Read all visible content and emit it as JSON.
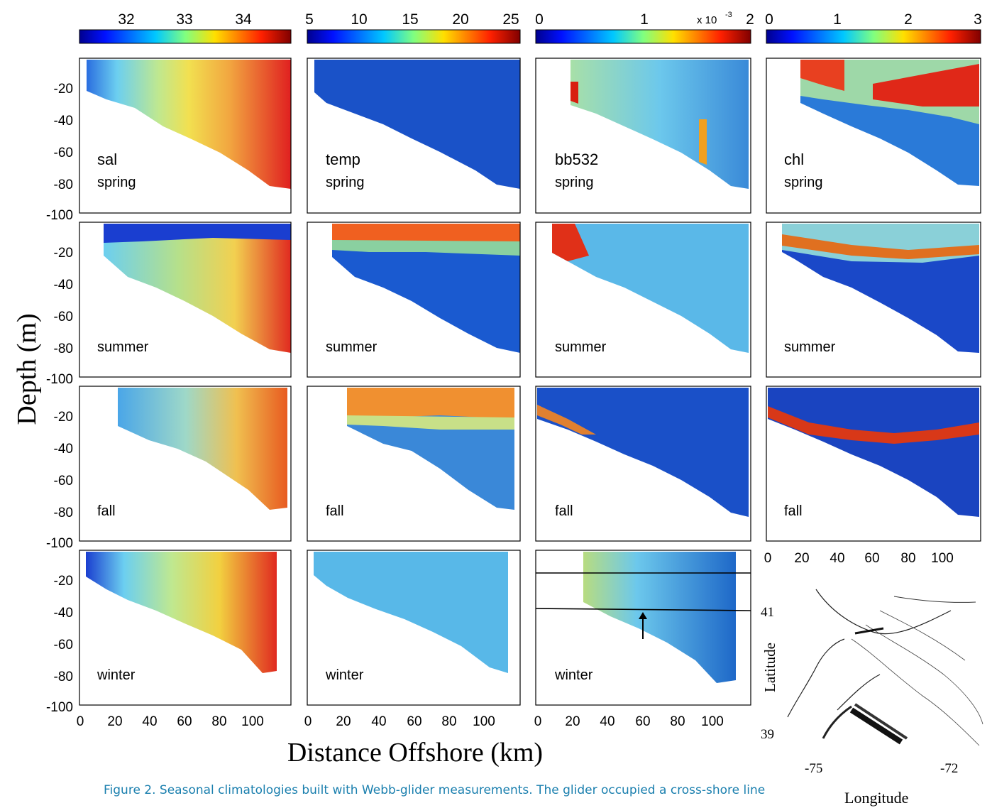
{
  "figure": {
    "ylabel": "Depth (m)",
    "xlabel": "Distance Offshore (km)",
    "depth_ticks": [
      "-20",
      "-40",
      "-60",
      "-80",
      "-100"
    ],
    "distance_ticks": [
      "0",
      "20",
      "40",
      "60",
      "80",
      "100"
    ]
  },
  "colorbars": [
    {
      "variable": "sal",
      "ticks": [
        "32",
        "33",
        "34"
      ],
      "multiplier": ""
    },
    {
      "variable": "temp",
      "ticks": [
        "5",
        "10",
        "15",
        "20",
        "25"
      ],
      "multiplier": ""
    },
    {
      "variable": "bb532",
      "ticks": [
        "0",
        "1",
        "2"
      ],
      "multiplier": "x 10",
      "exponent": "-3"
    },
    {
      "variable": "chl",
      "ticks": [
        "0",
        "1",
        "2",
        "3"
      ],
      "multiplier": ""
    }
  ],
  "variables": [
    "sal",
    "temp",
    "bb532",
    "chl"
  ],
  "seasons": [
    "spring",
    "summer",
    "fall",
    "winter"
  ],
  "map": {
    "latitude_label": "Latitude",
    "longitude_label": "Longitude",
    "lat_ticks": [
      "41",
      "39"
    ],
    "lon_ticks": [
      "-75",
      "-72"
    ]
  },
  "caption": "Figure 2. Seasonal climatologies built with Webb-glider measurements. The glider occupied a cross-shore line",
  "chart_data": {
    "type": "heatmap",
    "title": "",
    "xlabel": "Distance Offshore (km)",
    "ylabel": "Depth (m)",
    "xlim": [
      0,
      120
    ],
    "ylim": [
      -100,
      0
    ],
    "panels": {
      "sal": {
        "colorbar_range": [
          31.3,
          35.0
        ],
        "spring": "fresher ~32 nearshore to ~34.5 offshore at depth",
        "summer": "surface fresh ~32, bottom ~34.5 offshore",
        "fall": "~32.5 to ~34 offshore",
        "winter": "~32 nearshore to ~34.5 offshore"
      },
      "temp": {
        "colorbar_range": [
          5,
          26
        ],
        "spring": "cold ~6-7 throughout",
        "summer": "warm surface ~24 over cold pool ~8",
        "fall": "warm ~20 upper layer over ~10 bottom",
        "winter": "~10-12 throughout"
      },
      "bb532": {
        "colorbar_range": [
          0,
          0.002
        ],
        "spring": "~0.7-1.2e-3, high near shore bottom",
        "summer": "high nearshore, ~0.8e-3 offshore",
        "fall": "low ~0.2e-3 with high nearshore band",
        "winter": "~0.8-1.0e-3"
      },
      "chl": {
        "colorbar_range": [
          0,
          3
        ],
        "spring": "high ~3 at 20-30 m subsurface",
        "summer": "subsurface max ~2 at 15-20 m",
        "fall": "subsurface max at ~25 m",
        "winter": ""
      }
    }
  }
}
